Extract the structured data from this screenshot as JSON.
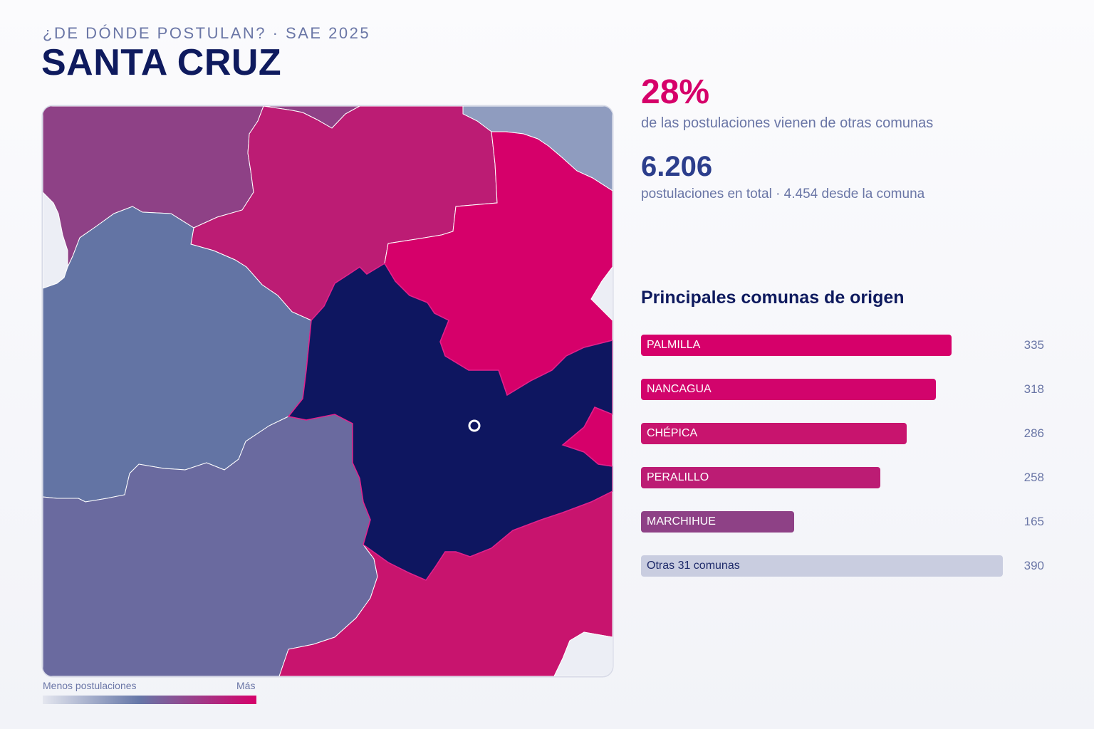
{
  "header": {
    "eyebrow": "¿DE DÓNDE POSTULAN? · SAE 2025",
    "title": "SANTA CRUZ"
  },
  "map": {
    "legend_low": "Menos postulaciones",
    "legend_high": "Más",
    "marker": "comuna-center-marker",
    "colors": {
      "santa_cruz": "#0e1660",
      "high": "#d6006a",
      "mid_high": "#c8146e",
      "mid": "#bc1c74",
      "purple": "#8e4186",
      "blue": "#6374a4",
      "slate": "#6a6a9f",
      "light": "#8f9cbf",
      "outside": "#eceef5"
    }
  },
  "stats": {
    "pct": "28%",
    "pct_label": "de las postulaciones vienen de otras comunas",
    "total": "6.206",
    "total_label": "postulaciones en total · 4.454 desde la comuna"
  },
  "ranking": {
    "title": "Principales comunas de origen",
    "items": [
      {
        "name": "PALMILLA",
        "value": 335,
        "value_label": "335",
        "color": "#d6006a"
      },
      {
        "name": "NANCAGUA",
        "value": 318,
        "value_label": "318",
        "color": "#d2046c"
      },
      {
        "name": "CHÉPICA",
        "value": 286,
        "value_label": "286",
        "color": "#c8146e"
      },
      {
        "name": "PERALILLO",
        "value": 258,
        "value_label": "258",
        "color": "#bc1c74"
      },
      {
        "name": "MARCHIHUE",
        "value": 165,
        "value_label": "165",
        "color": "#8e4186"
      },
      {
        "name": "Otras 31 comunas",
        "value": 390,
        "value_label": "390",
        "color": "#c9cde0"
      }
    ]
  }
}
